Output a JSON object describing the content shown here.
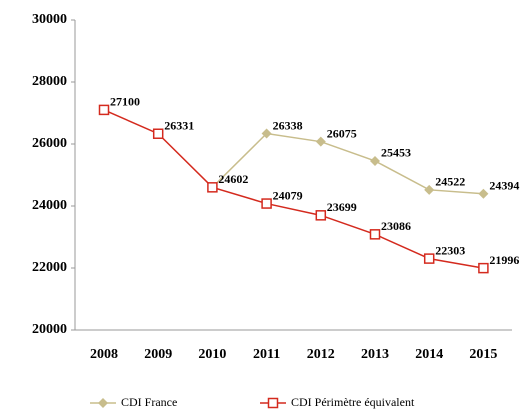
{
  "chart_data": {
    "type": "line",
    "categories": [
      "2008",
      "2009",
      "2010",
      "2011",
      "2012",
      "2013",
      "2014",
      "2015"
    ],
    "series": [
      {
        "name": "CDI France",
        "color": "#c8bd8c",
        "marker": "diamond",
        "values": [
          null,
          null,
          24602,
          26338,
          26075,
          25453,
          24522,
          24394
        ]
      },
      {
        "name": "CDI Périmètre équivalent",
        "color": "#d42a1e",
        "marker": "square",
        "values": [
          27100,
          26331,
          24602,
          24079,
          23699,
          23086,
          22303,
          21996
        ]
      }
    ],
    "ylim": [
      20000,
      30000
    ],
    "yticks": [
      20000,
      22000,
      24000,
      26000,
      28000,
      30000
    ],
    "grid": false,
    "legend": "bottom"
  }
}
